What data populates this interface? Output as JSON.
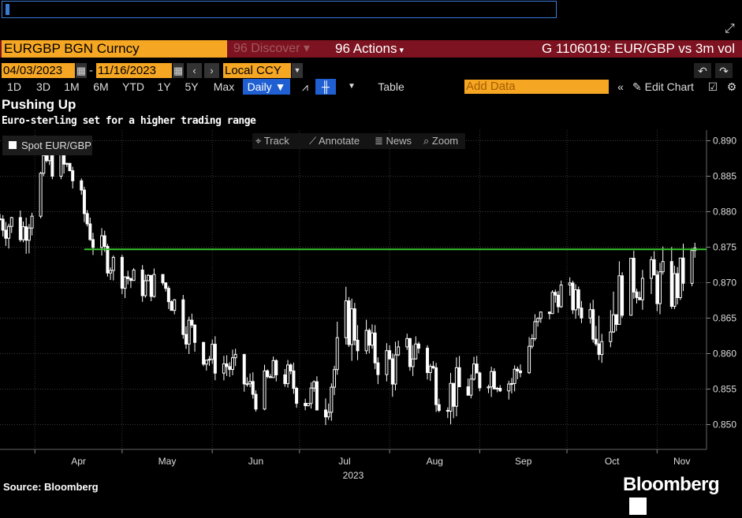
{
  "command_bar": {
    "value": ""
  },
  "header": {
    "ticker": "EURGBP BGN Curncy",
    "discover": "Discover",
    "actions": "Actions",
    "graph_title": "G 1106019: EUR/GBP vs 3m vol"
  },
  "date_range": {
    "start": "04/03/2023",
    "end": "11/16/2023",
    "currency": "Local CCY"
  },
  "toolbar": {
    "periods": [
      "1D",
      "3D",
      "1M",
      "6M",
      "YTD",
      "1Y",
      "5Y",
      "Max"
    ],
    "frequency": "Daily",
    "table": "Table",
    "add_data_placeholder": "Add Data",
    "edit_chart": "Edit Chart"
  },
  "chart_tools": {
    "track": "Track",
    "annotate": "Annotate",
    "news": "News",
    "zoom": "Zoom"
  },
  "footer": {
    "source": "Source: Bloomberg",
    "brand": "Bloomberg"
  },
  "colors": {
    "accent": "#f5a623",
    "header_bg": "#7d1320",
    "active": "#1f5fd1",
    "series": "#ffffff",
    "reference_line": "#39c52f"
  },
  "chart_data": {
    "type": "candlestick",
    "title": "Pushing Up",
    "subtitle": "Euro-sterling set for a higher trading range",
    "legend": [
      {
        "name": "Spot EUR/GBP",
        "color": "#ffffff"
      }
    ],
    "x_ticks": [
      {
        "label": "Apr",
        "date": "2023-04-01"
      },
      {
        "label": "May",
        "date": "2023-05-01"
      },
      {
        "label": "Jun",
        "date": "2023-06-01"
      },
      {
        "label": "Jul",
        "date": "2023-07-01"
      },
      {
        "label": "Aug",
        "date": "2023-08-01"
      },
      {
        "label": "Sep",
        "date": "2023-09-01"
      },
      {
        "label": "Oct",
        "date": "2023-10-01"
      },
      {
        "label": "Nov",
        "date": "2023-11-01"
      }
    ],
    "x_year_label": "2023",
    "xlim": [
      "2023-03-20",
      "2023-11-18"
    ],
    "ylim": [
      0.8465,
      0.8915
    ],
    "y_ticks": [
      0.85,
      0.855,
      0.86,
      0.865,
      0.87,
      0.875,
      0.88,
      0.885,
      0.89
    ],
    "reference_line": {
      "value": 0.8747,
      "from": "2023-04-18",
      "to": "2023-11-18"
    },
    "series": [
      {
        "name": "Spot EUR/GBP",
        "dates": [
          "2023-03-20",
          "2023-03-28",
          "2023-04-05",
          "2023-04-13",
          "2023-04-21",
          "2023-04-29",
          "2023-05-07",
          "2023-05-15",
          "2023-05-23",
          "2023-05-31",
          "2023-06-08",
          "2023-06-16",
          "2023-06-24",
          "2023-07-02",
          "2023-07-10",
          "2023-07-18",
          "2023-07-26",
          "2023-08-03",
          "2023-08-11",
          "2023-08-19",
          "2023-08-27",
          "2023-09-04",
          "2023-09-12",
          "2023-09-20",
          "2023-09-28",
          "2023-10-06",
          "2023-10-14",
          "2023-10-22",
          "2023-10-30",
          "2023-11-07",
          "2023-11-15"
        ],
        "values": [
          0.879,
          0.8775,
          0.887,
          0.886,
          0.876,
          0.872,
          0.8695,
          0.87,
          0.864,
          0.8595,
          0.858,
          0.854,
          0.858,
          0.854,
          0.8535,
          0.865,
          0.86,
          0.858,
          0.861,
          0.8545,
          0.855,
          0.8575,
          0.856,
          0.863,
          0.869,
          0.8665,
          0.864,
          0.8705,
          0.87,
          0.869,
          0.8746
        ],
        "highs": [
          0.8815,
          0.8805,
          0.888,
          0.8875,
          0.8785,
          0.874,
          0.8715,
          0.872,
          0.867,
          0.862,
          0.8605,
          0.857,
          0.86,
          0.857,
          0.858,
          0.87,
          0.864,
          0.862,
          0.865,
          0.857,
          0.859,
          0.86,
          0.859,
          0.866,
          0.8705,
          0.869,
          0.874,
          0.8745,
          0.873,
          0.8755,
          0.8768
        ],
        "lows": [
          0.8755,
          0.8735,
          0.8835,
          0.8825,
          0.8735,
          0.869,
          0.867,
          0.8675,
          0.861,
          0.8565,
          0.855,
          0.8525,
          0.855,
          0.8515,
          0.8508,
          0.86,
          0.857,
          0.854,
          0.858,
          0.8495,
          0.852,
          0.8545,
          0.853,
          0.86,
          0.865,
          0.864,
          0.8615,
          0.868,
          0.865,
          0.867,
          0.872
        ]
      }
    ]
  }
}
